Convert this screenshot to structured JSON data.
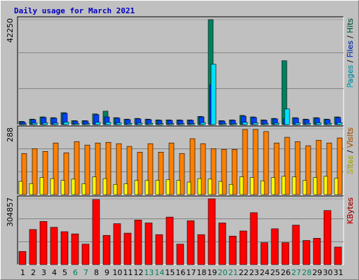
{
  "title": "Daily usage for March 2021",
  "chart_data": [
    {
      "type": "bar",
      "ylim": [
        0,
        42250
      ],
      "yticks": [
        42250
      ],
      "legend_separator": " / ",
      "series": [
        {
          "name": "Hits",
          "color": "#008060",
          "values": [
            1300,
            2200,
            3100,
            2800,
            4800,
            1600,
            1600,
            4300,
            5400,
            2800,
            2200,
            2500,
            2200,
            1900,
            1900,
            1900,
            1900,
            3300,
            42250,
            1600,
            1900,
            3700,
            3100,
            1900,
            2500,
            25700,
            2800,
            2200,
            2800,
            2200,
            3100
          ]
        },
        {
          "name": "Files",
          "color": "#0040ff",
          "values": [
            1100,
            2000,
            2850,
            2600,
            4570,
            1430,
            1430,
            4000,
            3100,
            2600,
            2000,
            2300,
            2000,
            1700,
            1700,
            1700,
            1700,
            3100,
            16000,
            1430,
            1700,
            3400,
            2850,
            1700,
            2300,
            2300,
            2600,
            2000,
            2600,
            2000,
            2850
          ]
        },
        {
          "name": "Pages",
          "color": "#00e0ff",
          "values": [
            300,
            600,
            700,
            600,
            1000,
            400,
            400,
            900,
            900,
            700,
            500,
            600,
            500,
            400,
            400,
            400,
            400,
            800,
            24270,
            400,
            400,
            900,
            700,
            400,
            600,
            6280,
            700,
            500,
            700,
            500,
            800
          ]
        }
      ]
    },
    {
      "type": "bar",
      "ylim": [
        0,
        288
      ],
      "yticks": [
        288
      ],
      "legend_separator": " / ",
      "series": [
        {
          "name": "Visits",
          "color": "#ff8000",
          "values": [
            180,
            201,
            189,
            226,
            183,
            232,
            217,
            226,
            229,
            223,
            211,
            186,
            223,
            186,
            226,
            180,
            245,
            223,
            201,
            198,
            198,
            285,
            285,
            276,
            226,
            251,
            232,
            214,
            238,
            226,
            248
          ]
        },
        {
          "name": "Sites",
          "color": "#ffff00",
          "values": [
            58,
            48,
            75,
            70,
            62,
            68,
            48,
            78,
            70,
            45,
            48,
            62,
            62,
            62,
            65,
            62,
            55,
            70,
            68,
            58,
            45,
            78,
            75,
            60,
            75,
            80,
            78,
            62,
            75,
            80,
            72
          ]
        }
      ]
    },
    {
      "type": "bar",
      "ylim": [
        0,
        304857
      ],
      "yticks": [
        304857
      ],
      "categories": [
        "1",
        "2",
        "3",
        "4",
        "5",
        "6",
        "7",
        "8",
        "9",
        "10",
        "11",
        "12",
        "13",
        "14",
        "15",
        "16",
        "17",
        "18",
        "19",
        "20",
        "21",
        "22",
        "23",
        "24",
        "25",
        "26",
        "27",
        "28",
        "29",
        "30",
        "31"
      ],
      "category_colors": [
        "#000000",
        "#000000",
        "#000000",
        "#000000",
        "#000000",
        "#008060",
        "#008060",
        "#000000",
        "#000000",
        "#000000",
        "#000000",
        "#000000",
        "#008060",
        "#008060",
        "#000000",
        "#000000",
        "#000000",
        "#000000",
        "#000000",
        "#008060",
        "#008060",
        "#000000",
        "#000000",
        "#000000",
        "#000000",
        "#000000",
        "#008060",
        "#008060",
        "#000000",
        "#000000",
        "#000000"
      ],
      "series": [
        {
          "name": "KBytes",
          "color": "#ff0000",
          "values": [
            61000,
            162600,
            199900,
            172800,
            152500,
            142400,
            94800,
            301500,
            135500,
            189700,
            145800,
            206600,
            193000,
            138900,
            220200,
            94800,
            203200,
            138900,
            304857,
            193000,
            132100,
            155800,
            240500,
            101600,
            166000,
            101600,
            182900,
            111800,
            121900,
            250600,
            81300
          ]
        }
      ]
    }
  ]
}
